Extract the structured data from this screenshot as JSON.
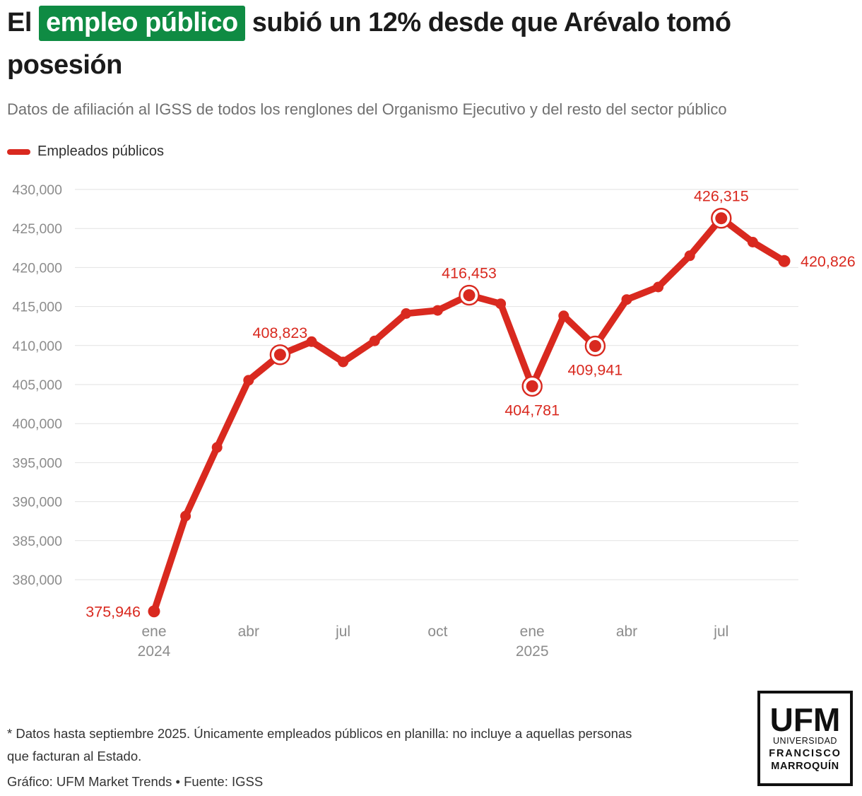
{
  "header": {
    "title_pre": "El ",
    "title_highlight": "empleo público",
    "title_post": " subió un 12% desde que Arévalo tomó",
    "title_line2": "posesión",
    "subtitle": "Datos de afiliación al IGSS de todos los renglones del Organismo Ejecutivo y del resto del sector público"
  },
  "legend": {
    "label": "Empleados públicos"
  },
  "colors": {
    "accent_red": "#d9291f",
    "highlight_green": "#0f8b43",
    "grid_gray": "#e2e2e2",
    "axis_gray": "#8c8c8c"
  },
  "chart_data": {
    "type": "line",
    "series_name": "Empleados públicos",
    "x": [
      "ene 2024",
      "feb 2024",
      "mar 2024",
      "abr 2024",
      "may 2024",
      "jun 2024",
      "jul 2024",
      "ago 2024",
      "sep 2024",
      "oct 2024",
      "nov 2024",
      "dic 2024",
      "ene 2025",
      "feb 2025",
      "mar 2025",
      "abr 2025",
      "may 2025",
      "jun 2025",
      "jul 2025",
      "ago 2025",
      "sep 2025"
    ],
    "values": [
      375946,
      388150,
      396950,
      405550,
      408823,
      410500,
      407900,
      410600,
      414100,
      414500,
      416453,
      415350,
      404781,
      413800,
      409941,
      415900,
      417500,
      421500,
      426315,
      423250,
      420826
    ],
    "annotations": [
      {
        "index": 0,
        "label": "375,946",
        "position": "left",
        "ring": false
      },
      {
        "index": 4,
        "label": "408,823",
        "position": "above",
        "ring": true
      },
      {
        "index": 10,
        "label": "416,453",
        "position": "above",
        "ring": true
      },
      {
        "index": 12,
        "label": "404,781",
        "position": "below",
        "ring": true
      },
      {
        "index": 14,
        "label": "409,941",
        "position": "below",
        "ring": true
      },
      {
        "index": 18,
        "label": "426,315",
        "position": "above",
        "ring": true
      },
      {
        "index": 20,
        "label": "420,826",
        "position": "right",
        "ring": false
      }
    ],
    "x_ticks": [
      {
        "index": 0,
        "label": "ene",
        "year": "2024"
      },
      {
        "index": 3,
        "label": "abr"
      },
      {
        "index": 6,
        "label": "jul"
      },
      {
        "index": 9,
        "label": "oct"
      },
      {
        "index": 12,
        "label": "ene",
        "year": "2025"
      },
      {
        "index": 15,
        "label": "abr"
      },
      {
        "index": 18,
        "label": "jul"
      }
    ],
    "y_axis": {
      "min": 380000,
      "max": 430000,
      "step": 5000,
      "tick_format": "thousands-comma"
    },
    "grid": true,
    "legend_position": "top-left",
    "line_color": "#d9291f"
  },
  "footer": {
    "note_line1": "* Datos hasta septiembre 2025. Únicamente empleados públicos en planilla: no incluye a aquellas personas",
    "note_line2": "que facturan al Estado.",
    "credit": "Gráfico: UFM Market Trends • Fuente: IGSS"
  },
  "logo": {
    "acronym": "UFM",
    "line1": "UNIVERSIDAD",
    "line2": "FRANCISCO",
    "line3": "MARROQUÍN"
  }
}
